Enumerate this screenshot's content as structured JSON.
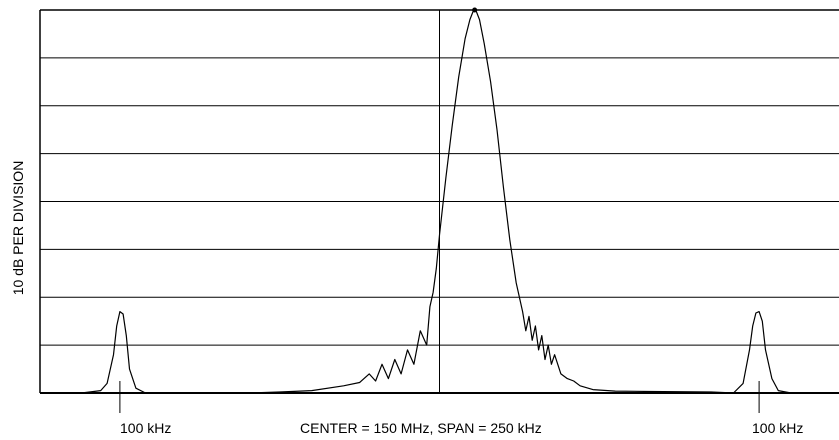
{
  "chart_data": {
    "type": "line",
    "title": "",
    "ylabel": "10 dB PER DIVISION",
    "xlabel": "CENTER = 150 MHz, SPAN = 250 kHz",
    "x_units": "kHz offset from center",
    "xlim": [
      -125,
      125
    ],
    "ylim": [
      -80,
      0
    ],
    "y_divisions": 8,
    "grid": {
      "horizontal": true,
      "vertical_center_line": true
    },
    "markers": [
      {
        "x": -100,
        "label": "100 kHz"
      },
      {
        "x": 100,
        "label": "100 kHz"
      }
    ],
    "series": [
      {
        "points": [
          [
            -125,
            -80
          ],
          [
            -112,
            -80
          ],
          [
            -106,
            -79.5
          ],
          [
            -104,
            -78
          ],
          [
            -102,
            -72
          ],
          [
            -101,
            -66
          ],
          [
            -100,
            -63
          ],
          [
            -99,
            -63.5
          ],
          [
            -98,
            -68
          ],
          [
            -97,
            -75
          ],
          [
            -95,
            -79
          ],
          [
            -92,
            -80
          ],
          [
            -80,
            -80
          ],
          [
            -60,
            -80
          ],
          [
            -50,
            -79.8
          ],
          [
            -40,
            -79.5
          ],
          [
            -30,
            -78.5
          ],
          [
            -25,
            -77.8
          ],
          [
            -22,
            -76
          ],
          [
            -20,
            -77.5
          ],
          [
            -18,
            -74
          ],
          [
            -16,
            -77
          ],
          [
            -14,
            -73
          ],
          [
            -12,
            -76
          ],
          [
            -10,
            -71
          ],
          [
            -8,
            -74
          ],
          [
            -6,
            -67
          ],
          [
            -4,
            -70
          ],
          [
            -3,
            -62
          ],
          [
            -2,
            -59
          ],
          [
            -1,
            -54
          ],
          [
            0,
            -47
          ],
          [
            2,
            -35
          ],
          [
            4,
            -24
          ],
          [
            6,
            -14
          ],
          [
            8,
            -6
          ],
          [
            9.5,
            -2
          ],
          [
            10.5,
            -0.3
          ],
          [
            11,
            0
          ],
          [
            11.5,
            -0.3
          ],
          [
            12.5,
            -2
          ],
          [
            14,
            -7
          ],
          [
            16,
            -15
          ],
          [
            18,
            -25
          ],
          [
            20,
            -37
          ],
          [
            22,
            -48
          ],
          [
            24,
            -57
          ],
          [
            26,
            -63
          ],
          [
            27,
            -67
          ],
          [
            28,
            -64
          ],
          [
            29,
            -69
          ],
          [
            30,
            -66
          ],
          [
            31,
            -71
          ],
          [
            32,
            -68
          ],
          [
            33,
            -73
          ],
          [
            34,
            -70
          ],
          [
            35,
            -74
          ],
          [
            36,
            -72
          ],
          [
            38,
            -76
          ],
          [
            40,
            -77
          ],
          [
            42,
            -77.5
          ],
          [
            44,
            -78.5
          ],
          [
            48,
            -79.3
          ],
          [
            55,
            -79.6
          ],
          [
            70,
            -79.7
          ],
          [
            85,
            -79.8
          ],
          [
            92,
            -80
          ],
          [
            95,
            -78
          ],
          [
            97,
            -71
          ],
          [
            98,
            -66
          ],
          [
            99,
            -63.3
          ],
          [
            100,
            -63
          ],
          [
            101,
            -65
          ],
          [
            102,
            -71
          ],
          [
            104,
            -77
          ],
          [
            106,
            -79.5
          ],
          [
            110,
            -80
          ],
          [
            125,
            -80
          ]
        ]
      }
    ]
  }
}
